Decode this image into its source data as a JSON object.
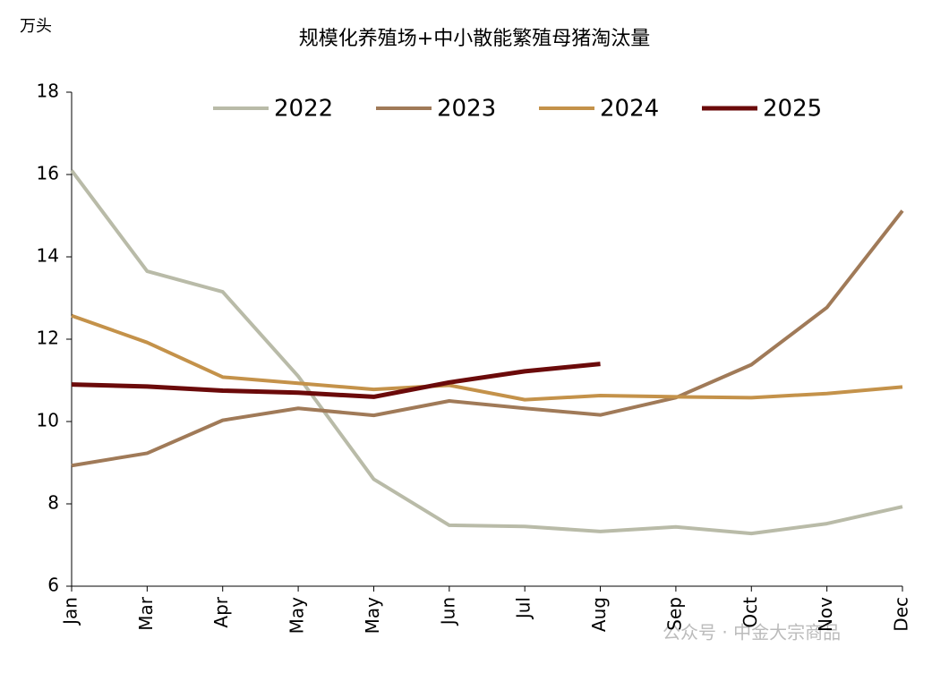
{
  "chart_data": {
    "type": "line",
    "title": "规模化养殖场+中小散能繁殖母猪淘汰量",
    "y_label": "万头",
    "categories": [
      "Jan",
      "Mar",
      "Apr",
      "May",
      "May",
      "Jun",
      "Jul",
      "Aug",
      "Sep",
      "Oct",
      "Nov",
      "Dec"
    ],
    "series": [
      {
        "name": "2022",
        "color": "#b9bba8",
        "values": [
          16.1,
          13.65,
          13.15,
          11.1,
          8.6,
          7.48,
          7.45,
          7.33,
          7.44,
          7.28,
          7.52,
          7.93
        ]
      },
      {
        "name": "2023",
        "color": "#a07a58",
        "values": [
          8.93,
          9.23,
          10.03,
          10.32,
          10.15,
          10.5,
          10.32,
          10.16,
          10.58,
          11.38,
          12.77,
          15.12
        ]
      },
      {
        "name": "2024",
        "color": "#c4924a",
        "values": [
          12.57,
          11.92,
          11.08,
          10.93,
          10.78,
          10.88,
          10.53,
          10.63,
          10.6,
          10.58,
          10.68,
          10.84
        ]
      },
      {
        "name": "2025",
        "color": "#6b0a0a",
        "values": [
          10.9,
          10.85,
          10.75,
          10.7,
          10.6,
          10.95,
          11.22,
          11.4,
          null,
          null,
          null,
          null
        ]
      }
    ],
    "ylim": [
      6,
      18
    ],
    "yticks": [
      6,
      8,
      10,
      12,
      14,
      16,
      18
    ],
    "legend": "top",
    "watermark": "公众号 · 中金大宗商品"
  }
}
